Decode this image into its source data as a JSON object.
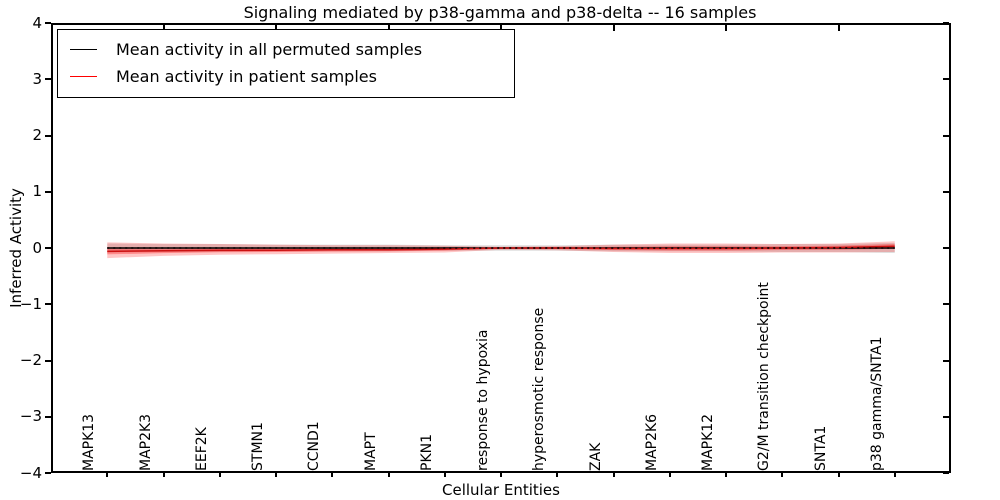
{
  "title": "Signaling mediated by p38-gamma and p38-delta -- 16 samples",
  "axes": {
    "ylabel": "Inferred Activity",
    "xlabel": "Cellular Entities",
    "ytick_labels": [
      "4",
      "3",
      "2",
      "1",
      "0",
      "−1",
      "−2",
      "−3",
      "−4"
    ],
    "ytick_values": [
      4,
      3,
      2,
      1,
      0,
      -1,
      -2,
      -3,
      -4
    ],
    "top_tick_values": [
      2,
      4,
      6,
      8,
      10,
      12,
      14
    ]
  },
  "legend": {
    "entries": [
      {
        "label": "Mean activity in all permuted samples",
        "color": "#000000"
      },
      {
        "label": "Mean activity in patient samples",
        "color": "#ff0000"
      }
    ]
  },
  "chart_data": {
    "type": "line",
    "title": "Signaling mediated by p38-gamma and p38-delta -- 16 samples",
    "xlabel": "Cellular Entities",
    "ylabel": "Inferred Activity",
    "xlim": [
      0,
      16
    ],
    "ylim": [
      -4,
      4
    ],
    "grid": false,
    "legend_position": "upper left",
    "categories": [
      "MAPK13",
      "MAP2K3",
      "EEF2K",
      "STMN1",
      "CCND1",
      "MAPT",
      "PKN1",
      "response to hypoxia",
      "hyperosmotic response",
      "ZAK",
      "MAP2K6",
      "MAPK12",
      "G2/M transition checkpoint",
      "SNTA1",
      "p38 gamma/SNTA1"
    ],
    "x": [
      1,
      2,
      3,
      4,
      5,
      6,
      7,
      8,
      9,
      10,
      11,
      12,
      13,
      14,
      15
    ],
    "series": [
      {
        "name": "Mean activity in all permuted samples",
        "color": "#000000",
        "values": [
          0.0,
          0.0,
          0.0,
          0.0,
          0.0,
          0.0,
          0.0,
          0.0,
          0.0,
          0.0,
          0.0,
          0.0,
          0.0,
          0.0,
          0.0
        ],
        "band_upper": [
          0.08,
          0.07,
          0.07,
          0.06,
          0.06,
          0.06,
          0.05,
          0.05,
          0.05,
          0.06,
          0.06,
          0.06,
          0.07,
          0.07,
          0.09
        ],
        "band_lower": [
          -0.08,
          -0.07,
          -0.07,
          -0.06,
          -0.06,
          -0.06,
          -0.05,
          -0.05,
          -0.05,
          -0.06,
          -0.06,
          -0.06,
          -0.07,
          -0.07,
          -0.09
        ],
        "band_color": "rgba(0,0,0,0.13)"
      },
      {
        "name": "Mean activity in patient samples",
        "color": "#cc1111",
        "values": [
          -0.06,
          -0.05,
          -0.04,
          -0.04,
          -0.03,
          -0.03,
          -0.02,
          0.0,
          0.0,
          -0.01,
          -0.01,
          -0.01,
          0.0,
          0.01,
          0.03
        ],
        "band_upper": [
          0.1,
          0.08,
          0.07,
          0.06,
          0.05,
          0.05,
          0.04,
          0.02,
          0.03,
          0.06,
          0.08,
          0.08,
          0.07,
          0.08,
          0.12
        ],
        "band_lower": [
          -0.18,
          -0.14,
          -0.12,
          -0.11,
          -0.1,
          -0.09,
          -0.08,
          -0.03,
          -0.04,
          -0.07,
          -0.09,
          -0.09,
          -0.08,
          -0.08,
          -0.07
        ],
        "band_color": "rgba(255,0,0,0.22)"
      }
    ],
    "zero_line": {
      "y": 0,
      "style": "dotted",
      "color": "#000000"
    }
  }
}
